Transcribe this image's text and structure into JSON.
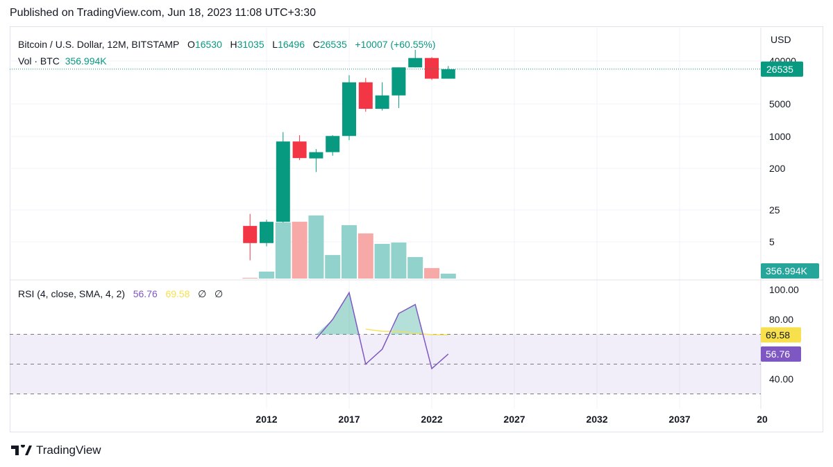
{
  "header": {
    "published": "Published on TradingView.com, Jun 18, 2023 11:08 UTC+3:30"
  },
  "legend": {
    "symbol": "Bitcoin / U.S. Dollar, 12M, BITSTAMP",
    "o_label": "O",
    "o": "16530",
    "h_label": "H",
    "h": "31035",
    "l_label": "L",
    "l": "16496",
    "c_label": "C",
    "c": "26535",
    "change": "+10007 (+60.55%)",
    "vol_label": "Vol · BTC",
    "vol": "356.994K"
  },
  "rsi_legend": {
    "label": "RSI (4, close, SMA, 4, 2)",
    "rsi": "56.76",
    "sma": "69.58",
    "n1": "∅",
    "n2": "∅"
  },
  "footer": {
    "brand": "TradingView"
  },
  "colors": {
    "up": "#089981",
    "down": "#f23645",
    "rsi": "#7e57c2",
    "sma": "#f7e04b"
  },
  "chart_data": [
    {
      "type": "candlestick",
      "scale": "log",
      "currency": "USD",
      "ylabels": [
        "40000",
        "5000",
        "1000",
        "200",
        "25",
        "5"
      ],
      "last_price": "26535",
      "last_volume": "356.994K",
      "xlabels": [
        "2012",
        "2017",
        "2022",
        "2027",
        "2032",
        "2037",
        "20"
      ],
      "candles": [
        {
          "year": 2011,
          "o": 11,
          "h": 20,
          "l": 2,
          "c": 4.7,
          "v": 50
        },
        {
          "year": 2012,
          "o": 4.7,
          "h": 15,
          "l": 4,
          "c": 13.5,
          "v": 510
        },
        {
          "year": 2013,
          "o": 13.5,
          "h": 1163,
          "l": 13,
          "c": 730,
          "v": 4130
        },
        {
          "year": 2014,
          "o": 730,
          "h": 1000,
          "l": 290,
          "c": 320,
          "v": 4180
        },
        {
          "year": 2015,
          "o": 315,
          "h": 500,
          "l": 160,
          "c": 430,
          "v": 4640
        },
        {
          "year": 2016,
          "o": 430,
          "h": 1000,
          "l": 360,
          "c": 960,
          "v": 1730
        },
        {
          "year": 2017,
          "o": 960,
          "h": 19666,
          "l": 780,
          "c": 13800,
          "v": 3930
        },
        {
          "year": 2018,
          "o": 13800,
          "h": 17200,
          "l": 3200,
          "c": 3700,
          "v": 3320
        },
        {
          "year": 2019,
          "o": 3700,
          "h": 13800,
          "l": 3400,
          "c": 7200,
          "v": 2550
        },
        {
          "year": 2020,
          "o": 7200,
          "h": 29000,
          "l": 3850,
          "c": 29000,
          "v": 2650
        },
        {
          "year": 2021,
          "o": 29000,
          "h": 69000,
          "l": 28800,
          "c": 46200,
          "v": 1580
        },
        {
          "year": 2022,
          "o": 46200,
          "h": 48200,
          "l": 15500,
          "c": 16530,
          "v": 770
        },
        {
          "year": 2023,
          "o": 16530,
          "h": 31035,
          "l": 16496,
          "c": 26535,
          "v": 357
        }
      ]
    },
    {
      "type": "line",
      "title": "RSI (4, close, SMA, 4, 2)",
      "ylabels": [
        "100.00",
        "80.00",
        "40.00"
      ],
      "ylim": [
        30,
        100
      ],
      "bands": [
        70,
        50,
        30
      ],
      "rsi": [
        {
          "year": 2015,
          "v": 67
        },
        {
          "year": 2016,
          "v": 80
        },
        {
          "year": 2017,
          "v": 98
        },
        {
          "year": 2018,
          "v": 50
        },
        {
          "year": 2019,
          "v": 60
        },
        {
          "year": 2020,
          "v": 84
        },
        {
          "year": 2021,
          "v": 90
        },
        {
          "year": 2022,
          "v": 47
        },
        {
          "year": 2023,
          "v": 56.76
        }
      ],
      "sma": [
        {
          "year": 2018,
          "v": 73.5
        },
        {
          "year": 2019,
          "v": 72
        },
        {
          "year": 2020,
          "v": 72
        },
        {
          "year": 2021,
          "v": 70.7
        },
        {
          "year": 2022,
          "v": 69.8
        },
        {
          "year": 2023,
          "v": 69.58
        }
      ],
      "rsi_label": "56.76",
      "sma_label": "69.58"
    }
  ]
}
